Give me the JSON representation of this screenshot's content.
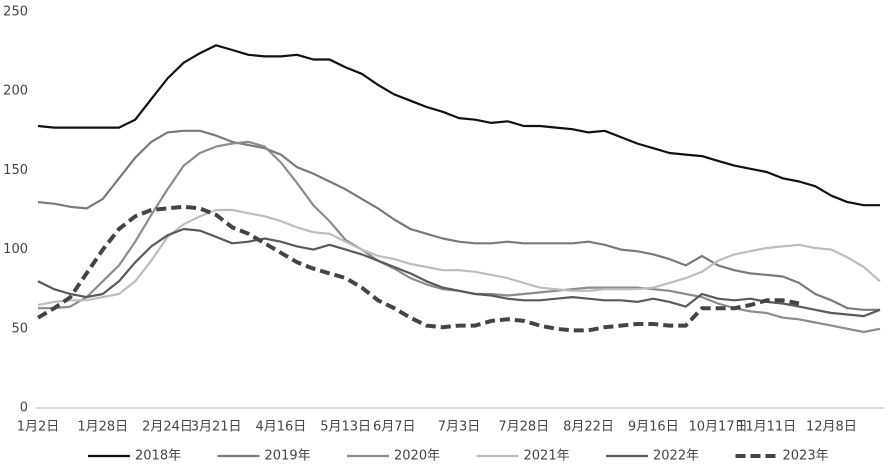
{
  "chart_data": {
    "type": "line",
    "categories": [
      "1月2日",
      null,
      null,
      null,
      "1月28日",
      null,
      null,
      null,
      "2月24日",
      null,
      null,
      "3月21日",
      null,
      null,
      null,
      "4月16日",
      null,
      null,
      null,
      "5月13日",
      null,
      null,
      "6月7日",
      null,
      null,
      null,
      "7月3日",
      null,
      null,
      null,
      "7月28日",
      null,
      null,
      null,
      "8月22日",
      null,
      null,
      null,
      "9月16日",
      null,
      null,
      null,
      "10月17日",
      null,
      null,
      "11月11日",
      null,
      null,
      null,
      "12月8日",
      null,
      null,
      null
    ],
    "ylim": [
      0,
      250
    ],
    "yticks": [
      0,
      50,
      100,
      150,
      200,
      250
    ],
    "grid": false,
    "legend": "bottom",
    "series": [
      {
        "name": "2018年",
        "color": "#111111",
        "dashed": false,
        "values": [
          178,
          177,
          177,
          177,
          177,
          177,
          182,
          195,
          208,
          218,
          224,
          229,
          226,
          223,
          222,
          222,
          223,
          220,
          220,
          215,
          211,
          204,
          198,
          194,
          190,
          187,
          183,
          182,
          180,
          181,
          178,
          178,
          177,
          176,
          174,
          175,
          171,
          167,
          164,
          161,
          160,
          159,
          156,
          153,
          151,
          149,
          145,
          143,
          140,
          134,
          130,
          128,
          128
        ]
      },
      {
        "name": "2019年",
        "color": "#7a7a7a",
        "dashed": false,
        "values": [
          130,
          129,
          127,
          126,
          132,
          145,
          158,
          168,
          174,
          175,
          175,
          172,
          168,
          166,
          164,
          160,
          152,
          148,
          143,
          138,
          132,
          126,
          119,
          113,
          110,
          107,
          105,
          104,
          104,
          105,
          104,
          104,
          104,
          104,
          105,
          103,
          100,
          99,
          97,
          94,
          90,
          96,
          90,
          87,
          85,
          84,
          83,
          79,
          72,
          68,
          63,
          62,
          62
        ]
      },
      {
        "name": "2020年",
        "color": "#8c8c8c",
        "dashed": false,
        "values": [
          63,
          63,
          64,
          70,
          80,
          90,
          105,
          122,
          138,
          153,
          161,
          165,
          167,
          168,
          165,
          155,
          142,
          128,
          118,
          106,
          100,
          93,
          88,
          82,
          78,
          75,
          74,
          72,
          72,
          71,
          72,
          73,
          74,
          75,
          76,
          76,
          76,
          76,
          75,
          74,
          72,
          70,
          66,
          63,
          61,
          60,
          57,
          56,
          54,
          52,
          50,
          48,
          50
        ]
      },
      {
        "name": "2021年",
        "color": "#bdbdbd",
        "dashed": false,
        "values": [
          65,
          67,
          68,
          68,
          70,
          72,
          80,
          93,
          108,
          116,
          121,
          125,
          125,
          123,
          121,
          118,
          114,
          111,
          110,
          105,
          100,
          96,
          94,
          91,
          89,
          87,
          87,
          86,
          84,
          82,
          79,
          76,
          75,
          74,
          74,
          75,
          75,
          75,
          76,
          79,
          82,
          86,
          93,
          97,
          99,
          101,
          102,
          103,
          101,
          100,
          95,
          89,
          80
        ]
      },
      {
        "name": "2022年",
        "color": "#5a5a5a",
        "dashed": false,
        "values": [
          80,
          75,
          72,
          70,
          72,
          80,
          92,
          102,
          109,
          113,
          112,
          108,
          104,
          105,
          107,
          105,
          102,
          100,
          103,
          100,
          97,
          93,
          89,
          85,
          80,
          76,
          74,
          72,
          71,
          69,
          68,
          68,
          69,
          70,
          69,
          68,
          68,
          67,
          69,
          67,
          64,
          72,
          69,
          68,
          69,
          67,
          66,
          64,
          62,
          60,
          59,
          58,
          62
        ]
      },
      {
        "name": "2023年",
        "color": "#444444",
        "dashed": true,
        "values": [
          57,
          63,
          70,
          85,
          100,
          113,
          121,
          125,
          126,
          127,
          126,
          122,
          114,
          110,
          104,
          98,
          92,
          88,
          85,
          82,
          76,
          68,
          63,
          57,
          52,
          51,
          52,
          52,
          55,
          56,
          55,
          52,
          50,
          49,
          49,
          51,
          52,
          53,
          53,
          52,
          52,
          63,
          63,
          63,
          65,
          68,
          68,
          66,
          null,
          null,
          null,
          null,
          null
        ]
      }
    ]
  }
}
